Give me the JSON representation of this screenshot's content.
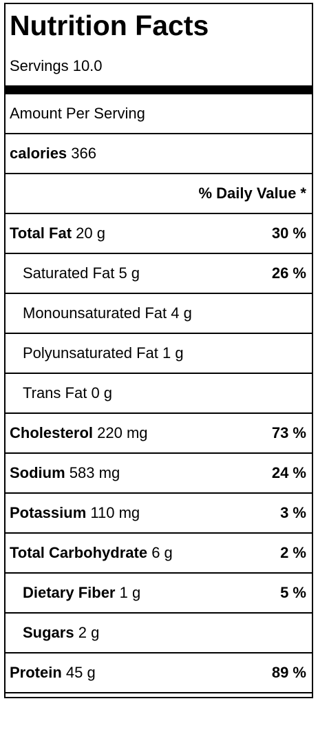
{
  "title": "Nutrition Facts",
  "servings": "Servings 10.0",
  "amount_per_serving": "Amount Per Serving",
  "calories": {
    "label": "calories",
    "value": "366"
  },
  "daily_value_header": "% Daily Value *",
  "rows": [
    {
      "label": "Total Fat",
      "amount": "20 g",
      "dv": "30 %"
    },
    {
      "label": "Saturated Fat",
      "amount": "5 g",
      "dv": "26 %"
    },
    {
      "label": "Monounsaturated Fat",
      "amount": "4 g",
      "dv": ""
    },
    {
      "label": "Polyunsaturated Fat",
      "amount": "1 g",
      "dv": ""
    },
    {
      "label": "Trans Fat",
      "amount": "0 g",
      "dv": ""
    },
    {
      "label": "Cholesterol",
      "amount": "220 mg",
      "dv": "73 %"
    },
    {
      "label": "Sodium",
      "amount": "583 mg",
      "dv": "24 %"
    },
    {
      "label": "Potassium",
      "amount": "110 mg",
      "dv": "3 %"
    },
    {
      "label": "Total Carbohydrate",
      "amount": "6 g",
      "dv": "2 %"
    },
    {
      "label": "Dietary Fiber",
      "amount": "1 g",
      "dv": "5 %"
    },
    {
      "label": "Sugars",
      "amount": "2 g",
      "dv": ""
    },
    {
      "label": "Protein",
      "amount": "45 g",
      "dv": "89 %"
    }
  ]
}
